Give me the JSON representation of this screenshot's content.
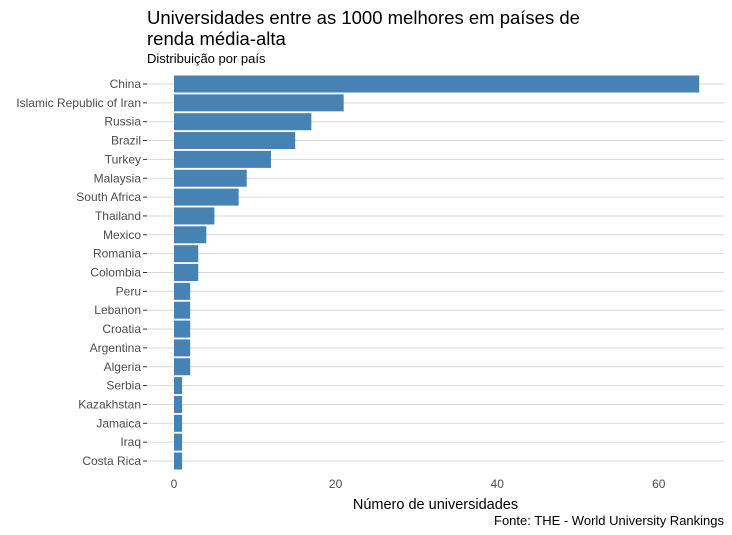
{
  "chart_data": {
    "type": "bar",
    "orientation": "horizontal",
    "title": "Universidades entre as 1000 melhores em países de renda média-alta",
    "subtitle": "Distribuição por país",
    "xlabel": "Número de universidades",
    "ylabel": "",
    "caption": "Fonte: THE - World University Rankings",
    "categories": [
      "China",
      "Islamic Republic of Iran",
      "Russia",
      "Brazil",
      "Turkey",
      "Malaysia",
      "South Africa",
      "Thailand",
      "Mexico",
      "Romania",
      "Colombia",
      "Peru",
      "Lebanon",
      "Croatia",
      "Argentina",
      "Algeria",
      "Serbia",
      "Kazakhstan",
      "Jamaica",
      "Iraq",
      "Costa Rica"
    ],
    "values": [
      65,
      21,
      17,
      15,
      12,
      9,
      8,
      5,
      4,
      3,
      3,
      2,
      2,
      2,
      2,
      2,
      1,
      1,
      1,
      1,
      1
    ],
    "xlim": [
      0,
      68
    ],
    "xticks": [
      0,
      20,
      40,
      60
    ],
    "grid": "horizontal",
    "bar_color": "#4682b4",
    "legend": "none"
  }
}
